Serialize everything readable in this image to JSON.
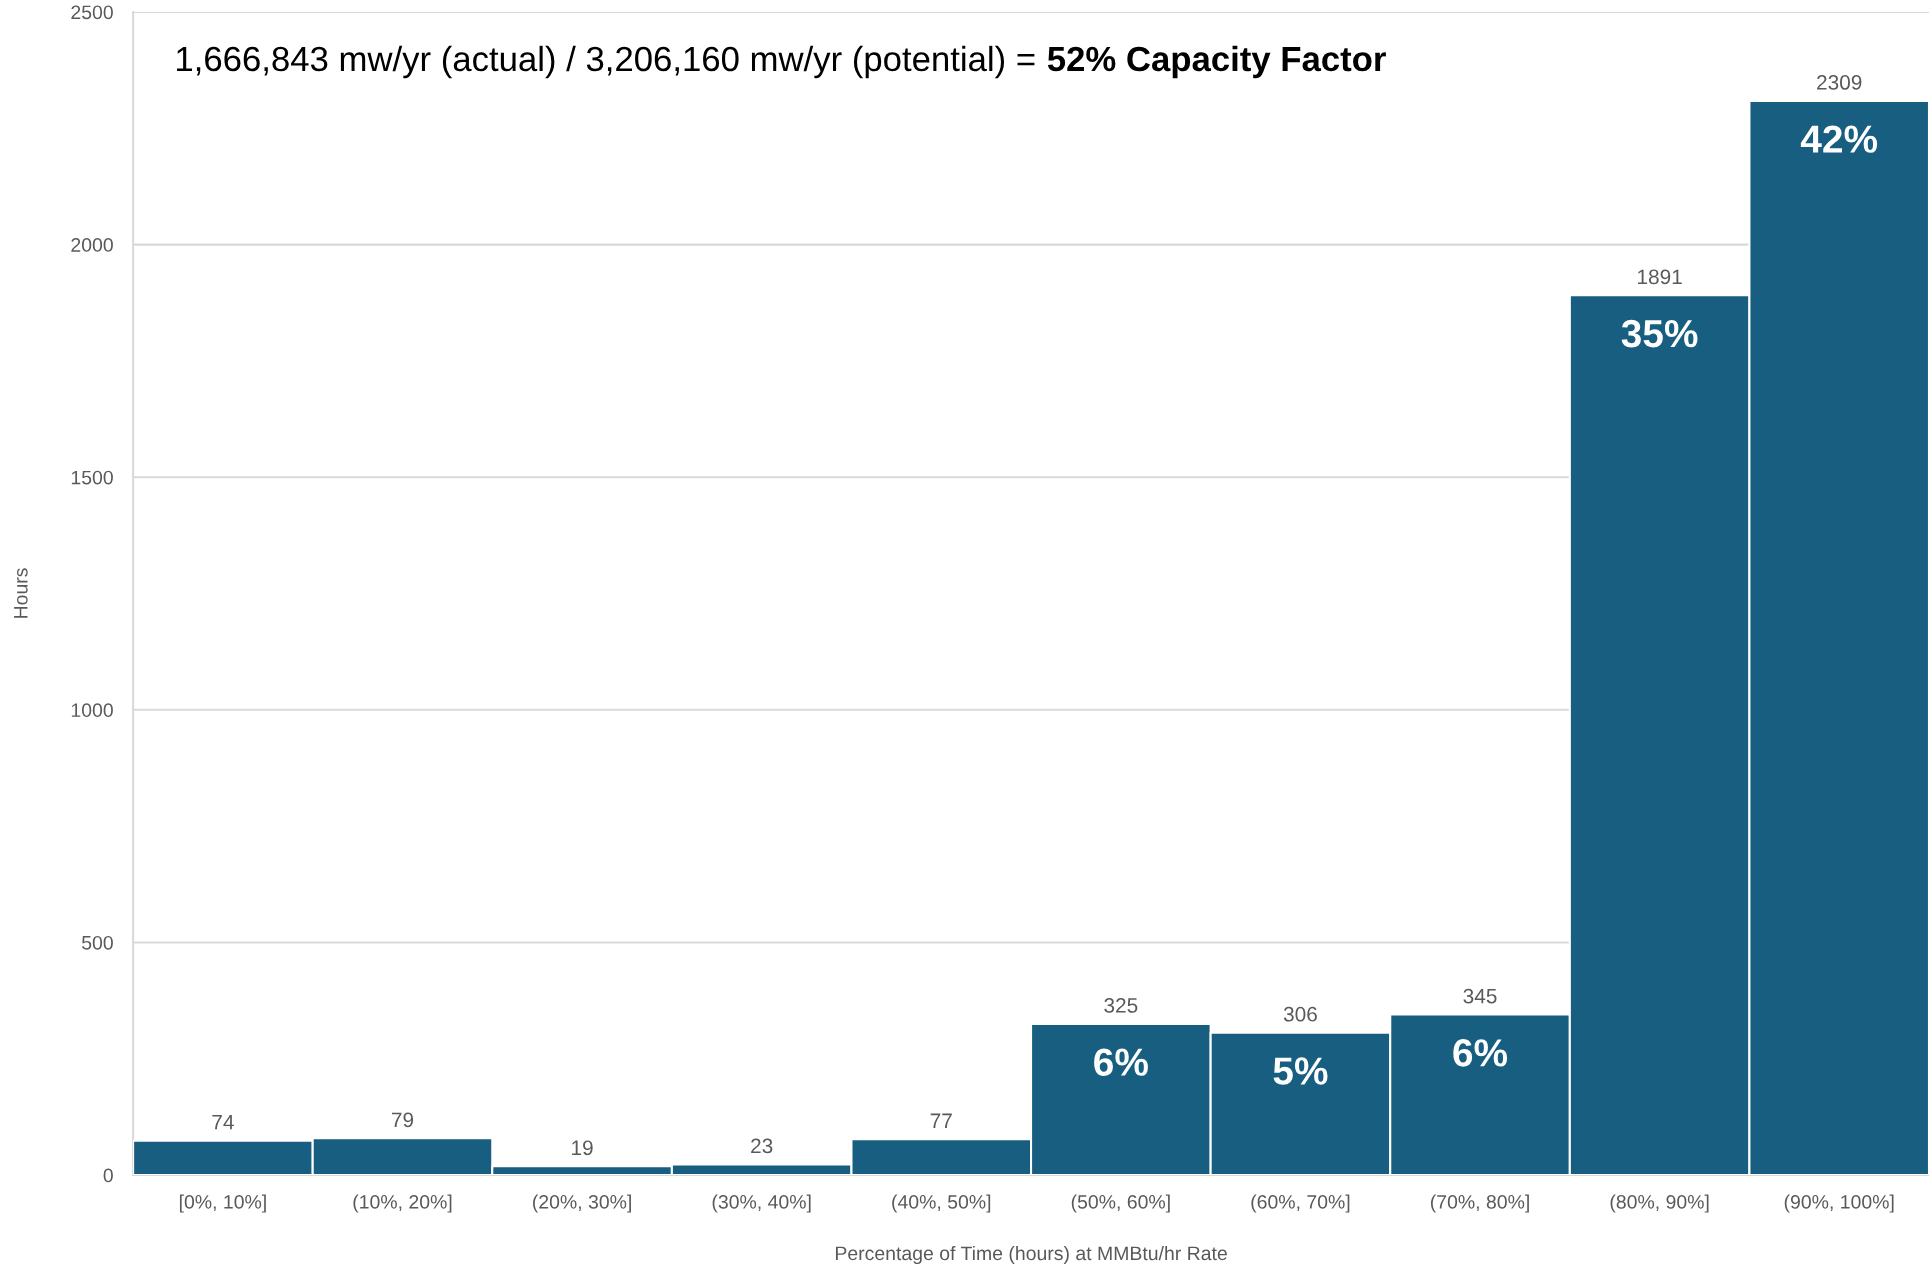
{
  "chart_data": {
    "type": "bar",
    "annotations": [
      "1,666,843 mw/yr (actual) / 3,206,160 mw/yr (potential) =",
      "52% Capacity Factor",
      {
        "text": "6%",
        "x": "(50%, 60%]",
        "y": 325
      },
      {
        "text": "5%",
        "x": "(60%, 70%]",
        "y": 306
      },
      {
        "text": "6%",
        "x": "(70%, 80%]",
        "y": 345
      },
      {
        "text": "35%",
        "x": "(80%, 90%]",
        "y": 1891
      },
      {
        "text": "42%",
        "x": "(90%, 100%]",
        "y": 2309
      }
    ],
    "xlabel": "Percentage of Time (hours) at MMBtu/hr Rate",
    "ylabel": "Hours",
    "categories": [
      "[0%, 10%]",
      "(10%, 20%]",
      "(20%, 30%]",
      "(30%, 40%]",
      "(40%, 50%]",
      "(50%, 60%]",
      "(60%, 70%]",
      "(70%, 80%]",
      "(80%, 90%]",
      "(90%, 100%]"
    ],
    "values": [
      74,
      79,
      19,
      23,
      77,
      325,
      306,
      345,
      1891,
      2309
    ],
    "color": "#175e80",
    "ylim": [
      0,
      2500
    ],
    "yticks": [
      0,
      500,
      1000,
      1500,
      2000,
      2500
    ],
    "grid": "y",
    "data_labels": true,
    "legend": false
  }
}
